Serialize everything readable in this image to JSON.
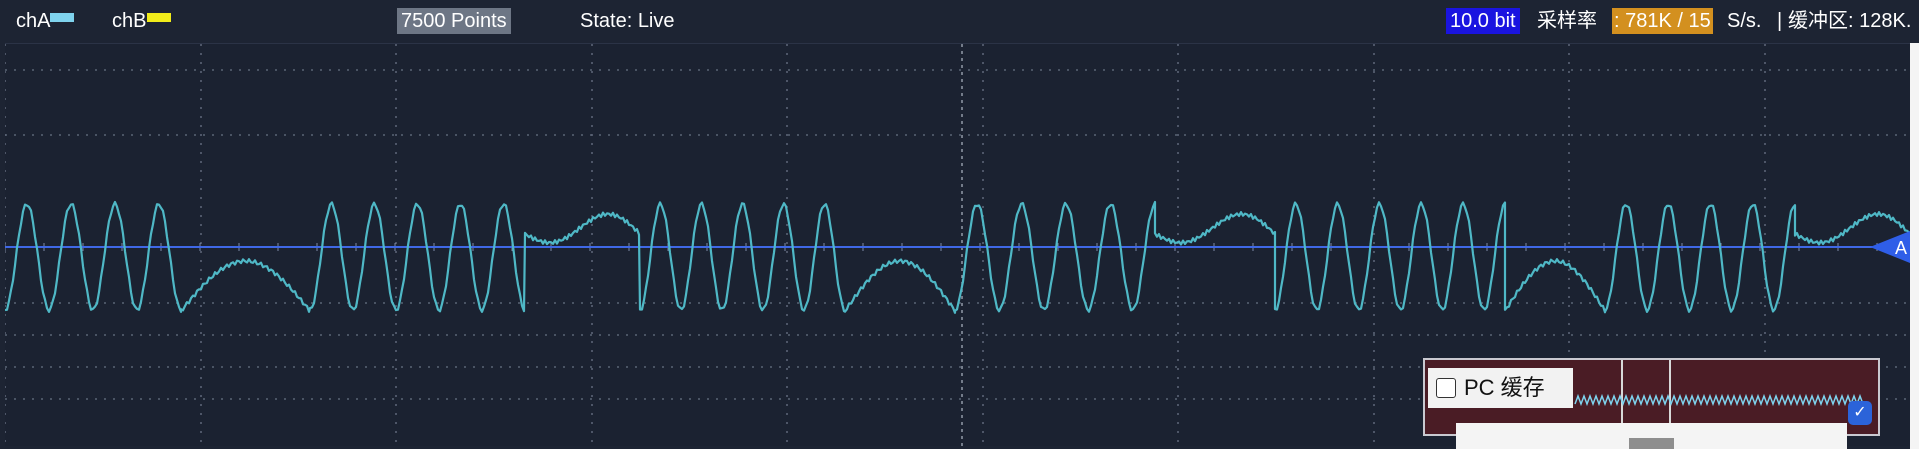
{
  "channels": [
    {
      "label": "chA",
      "color": "#7fd3ee"
    },
    {
      "label": "chB",
      "color": "#f1ec1a"
    }
  ],
  "points_label": "7500 Points",
  "state_label": "State: Live",
  "bit_depth": "10.0 bit",
  "sample_rate_label": "采样率",
  "sample_rate_value": ": 781K / 15",
  "sample_rate_unit": "S/s.",
  "separator": "|",
  "buffer_label": "缓冲区: 128K.",
  "trigger_marker": "A",
  "pc_cache_label": "PC 缓存",
  "pc_cache_checked": false,
  "colors": {
    "background": "#1b2231",
    "trace": "#4fb8c6",
    "trigger_line": "#3f68e6",
    "points_badge": "#6d7685",
    "bit_badge": "#1a14e0",
    "rate_badge": "#d3901f",
    "pc_panel": "#4a1c25"
  }
}
